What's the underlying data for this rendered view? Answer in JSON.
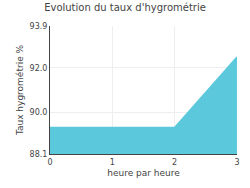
{
  "chart_data": {
    "type": "area",
    "title": "Evolution du taux d'hygrométrie",
    "xlabel": "heure par heure",
    "ylabel": "Taux hygrométrie %",
    "x": [
      0,
      2,
      3
    ],
    "values": [
      89.3,
      89.3,
      92.5
    ],
    "color": "#5bc8dc",
    "xlim": [
      0,
      3
    ],
    "ylim": [
      88.1,
      93.9
    ],
    "xticks": [
      0,
      1,
      2,
      3
    ],
    "yticks": [
      88.1,
      {
        "value": 90.0,
        "label": "90.0"
      },
      {
        "value": 92.0,
        "label": "92.0"
      },
      93.9
    ],
    "grid": true
  }
}
